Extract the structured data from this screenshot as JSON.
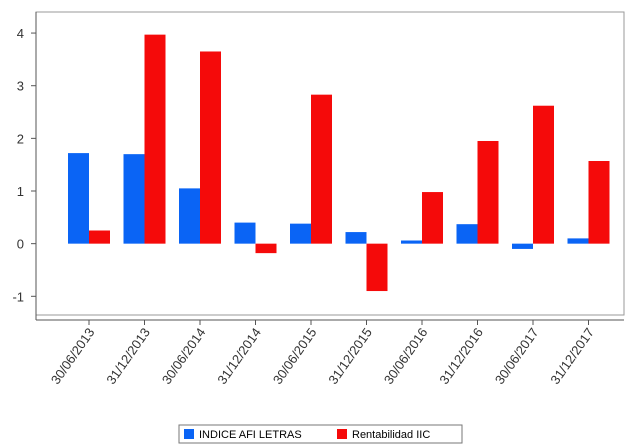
{
  "chart_data": {
    "type": "bar",
    "categories": [
      "30/06/2013",
      "31/12/2013",
      "30/06/2014",
      "31/12/2014",
      "30/06/2015",
      "31/12/2015",
      "30/06/2016",
      "31/12/2016",
      "30/06/2017",
      "31/12/2017"
    ],
    "series": [
      {
        "name": "INDICE AFI LETRAS",
        "color": "#0a64f5",
        "values": [
          1.72,
          1.7,
          1.05,
          0.4,
          0.38,
          0.22,
          0.06,
          0.37,
          -0.1,
          0.1
        ]
      },
      {
        "name": "Rentabilidad IIC",
        "color": "#f50a0a",
        "values": [
          0.25,
          3.97,
          3.65,
          -0.18,
          2.83,
          -0.9,
          0.98,
          1.95,
          2.62,
          1.57
        ]
      }
    ],
    "yticks": [
      -1,
      0,
      1,
      2,
      3,
      4
    ],
    "ylim": [
      -1.45,
      4.4
    ],
    "legend_position": "bottom-center",
    "grid": false
  }
}
